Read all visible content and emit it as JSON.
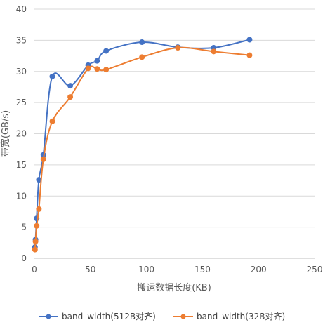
{
  "chart_data": {
    "type": "line",
    "title": "",
    "xlabel": "搬运数据长度(KB)",
    "ylabel": "带宽(GB/s)",
    "xlim": [
      0,
      250
    ],
    "ylim": [
      0,
      40
    ],
    "xticks": [
      0,
      50,
      100,
      150,
      200,
      250
    ],
    "yticks": [
      0,
      5,
      10,
      15,
      20,
      25,
      30,
      35,
      40
    ],
    "grid": "horizontal",
    "legend": "bottom",
    "smooth": true,
    "series": [
      {
        "name": "band_width(512B对齐)",
        "color": "#4472C4",
        "points": [
          [
            0.5,
            1.8
          ],
          [
            1,
            3.0
          ],
          [
            2,
            6.4
          ],
          [
            4,
            12.6
          ],
          [
            8,
            16.6
          ],
          [
            16,
            29.2
          ],
          [
            32,
            27.7
          ],
          [
            48,
            31.0
          ],
          [
            56,
            31.7
          ],
          [
            64,
            33.3
          ],
          [
            96,
            34.7
          ],
          [
            128,
            33.9
          ],
          [
            160,
            33.8
          ],
          [
            192,
            35.1
          ]
        ]
      },
      {
        "name": "band_width(32B对齐)",
        "color": "#ED7D31",
        "points": [
          [
            0.5,
            1.4
          ],
          [
            1,
            2.7
          ],
          [
            2,
            5.2
          ],
          [
            4,
            7.9
          ],
          [
            8,
            15.9
          ],
          [
            16,
            22.0
          ],
          [
            32,
            25.9
          ],
          [
            48,
            30.5
          ],
          [
            56,
            30.4
          ],
          [
            64,
            30.3
          ],
          [
            96,
            32.3
          ],
          [
            128,
            33.8
          ],
          [
            160,
            33.2
          ],
          [
            192,
            32.6
          ]
        ]
      }
    ]
  }
}
